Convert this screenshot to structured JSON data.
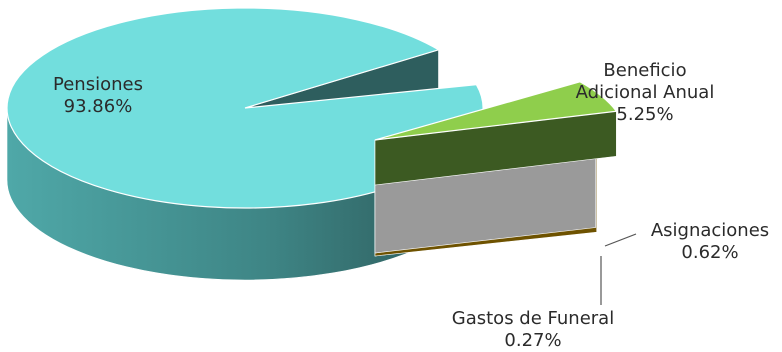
{
  "chart_data": {
    "type": "pie",
    "style": "3d-exploded",
    "slices": [
      {
        "name": "Pensiones",
        "value": 93.86,
        "label": "93.86%",
        "color": "#72DEDD",
        "side_color": "#2E5E5E"
      },
      {
        "name": "Beneficio Adicional Anual",
        "name_lines": [
          "Beneficio",
          "Adicional Anual"
        ],
        "value": 5.25,
        "label": "5.25%",
        "color": "#8FCE4C",
        "side_color": "#3C5A22"
      },
      {
        "name": "Asignaciones",
        "value": 0.62,
        "label": "0.62%",
        "color": "#E8E8E8",
        "side_color": "#9A9A9A"
      },
      {
        "name": "Gastos de Funeral",
        "value": 0.27,
        "label": "0.27%",
        "color": "#F2D16B",
        "side_color": "#6E5200"
      }
    ],
    "legend": "none",
    "data_labels": "name-and-percent"
  }
}
